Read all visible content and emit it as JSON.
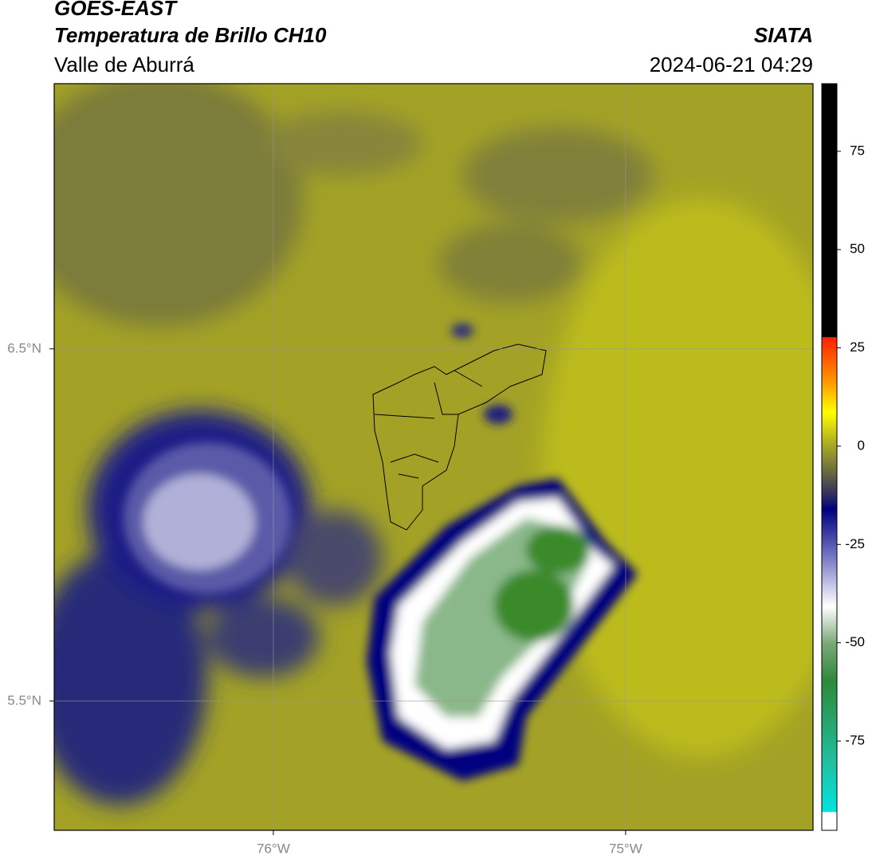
{
  "header": {
    "satellite": "GOES-EAST",
    "product": "Temperatura de Brillo CH10",
    "organization": "SIATA",
    "region": "Valle de Aburrá",
    "timestamp": "2024-06-21 04:29"
  },
  "map": {
    "lon_lim": [
      -76.622,
      -74.468
    ],
    "lat_lim": [
      5.133,
      7.253
    ],
    "lon_ticks": [
      {
        "value": -76,
        "label": "76°W"
      },
      {
        "value": -75,
        "label": "75°W"
      }
    ],
    "lat_ticks": [
      {
        "value": 6.5,
        "label": "6.5°N"
      },
      {
        "value": 5.5,
        "label": "5.5°N"
      }
    ]
  },
  "colorbar": {
    "lim": [
      -97.7,
      92.2
    ],
    "ticks": [
      -75,
      -50,
      -25,
      0,
      25,
      50,
      75
    ]
  }
}
